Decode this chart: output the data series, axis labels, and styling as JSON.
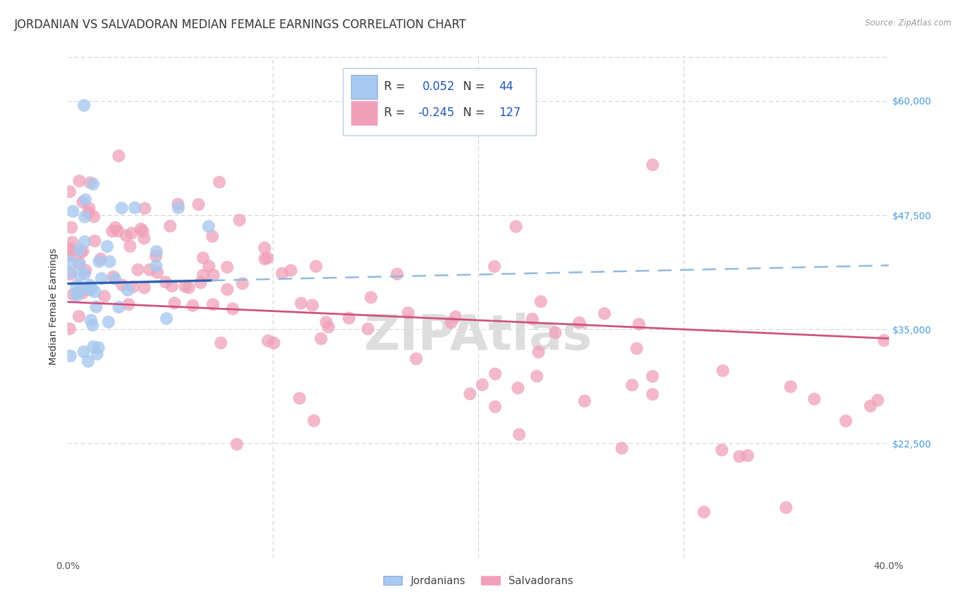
{
  "title": "JORDANIAN VS SALVADORAN MEDIAN FEMALE EARNINGS CORRELATION CHART",
  "source": "Source: ZipAtlas.com",
  "ylabel": "Median Female Earnings",
  "yticks": [
    22500,
    35000,
    47500,
    60000
  ],
  "ytick_labels": [
    "$22,500",
    "$35,000",
    "$47,500",
    "$60,000"
  ],
  "xmin": 0.0,
  "xmax": 0.4,
  "ymin": 10000,
  "ymax": 65000,
  "jordan_R": 0.052,
  "jordan_N": 44,
  "salva_R": -0.245,
  "salva_N": 127,
  "blue_color": "#A8C8F0",
  "pink_color": "#F0A0B8",
  "blue_line_color": "#3060B0",
  "pink_line_color": "#D05080",
  "dashed_line_color": "#90B8E0",
  "background_color": "#FFFFFF",
  "grid_color": "#CCCCCC",
  "watermark": "ZIPAtlas",
  "watermark_color": "#DDDDDD",
  "title_fontsize": 12,
  "axis_label_fontsize": 10,
  "tick_fontsize": 10,
  "legend_fontsize": 12
}
